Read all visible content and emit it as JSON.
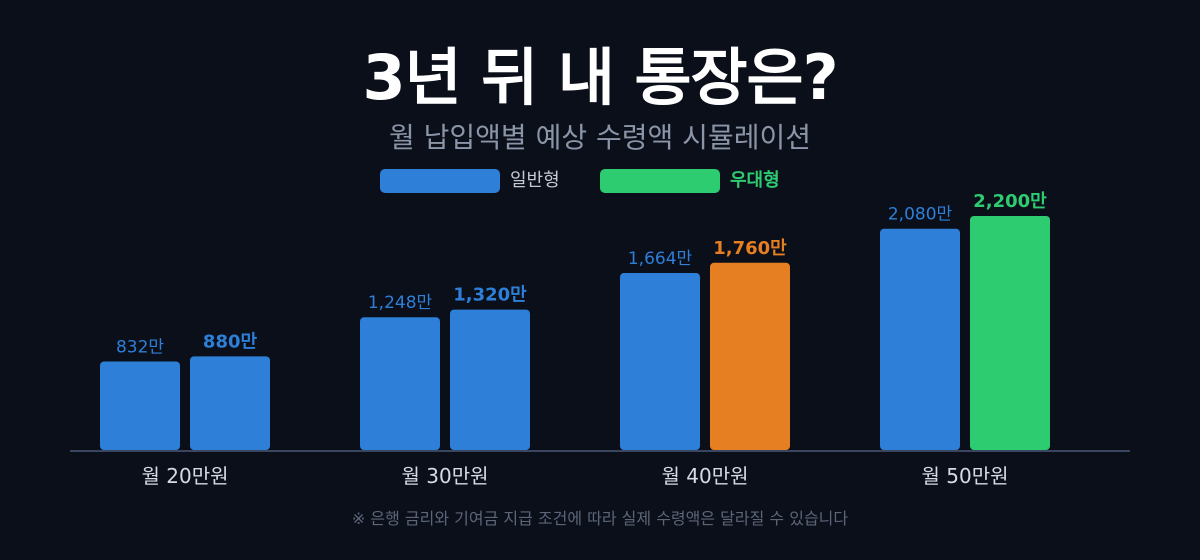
{
  "title": "3년 뒤 내 통장은?",
  "subtitle": "월 납입액별 예상 수령액 시뮬레이션",
  "legend": [
    {
      "label": "일반형",
      "color": "#2d7fd8"
    },
    {
      "label": "우대형",
      "color": "#2ecc71"
    }
  ],
  "footnote": "※ 은행 금리와 기여금 지급 조건에 따라 실제 수령액은 달라질 수 있습니다",
  "colors": {
    "general": "#2d7fd8",
    "preferred_default": "#2d7fd8",
    "preferred_40": "#e67e22",
    "preferred_50": "#2ecc71",
    "axis": "#3a4560",
    "category_text": "#d5dbe6"
  },
  "chart_data": {
    "type": "bar",
    "categories": [
      "월 20만원",
      "월 30만원",
      "월 40만원",
      "월 50만원"
    ],
    "series": [
      {
        "name": "일반형",
        "values": [
          832,
          1248,
          1664,
          2080
        ],
        "labels": [
          "832만",
          "1,248만",
          "1,664만",
          "2,080만"
        ]
      },
      {
        "name": "우대형",
        "values": [
          880,
          1320,
          1760,
          2200
        ],
        "labels": [
          "880만",
          "1,320만",
          "1,760만",
          "2,200만"
        ]
      }
    ],
    "title": "3년 뒤 내 통장은?",
    "xlabel": "",
    "ylabel": "",
    "ylim": [
      0,
      2350
    ],
    "grid": false,
    "legend": "top-center"
  }
}
